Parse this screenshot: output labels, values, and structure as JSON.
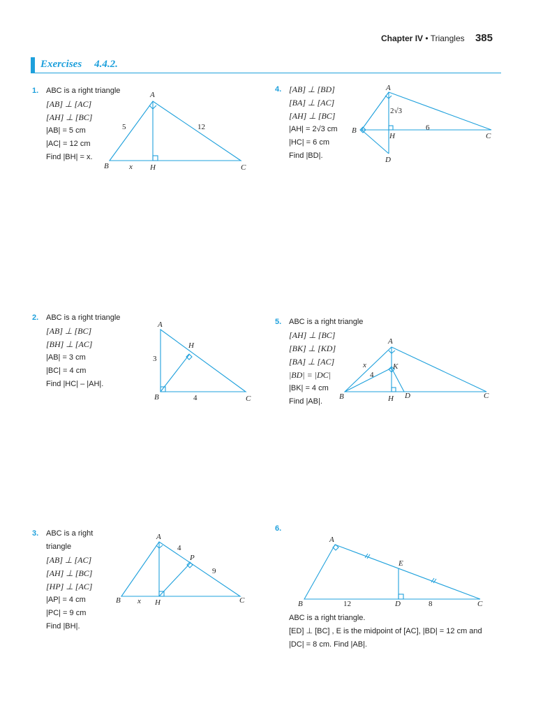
{
  "header": {
    "chapter": "Chapter IV",
    "bullet": "•",
    "topic": "Triangles",
    "page": "385"
  },
  "section": {
    "label": "Exercises",
    "number": "4.4.2."
  },
  "exercises": [
    {
      "num": "1.",
      "lines": [
        "ABC is a right triangle",
        "[AB] ⊥ [AC]",
        "[AH] ⊥ [BC]",
        "|AB| = 5 cm",
        "|AC| = 12 cm",
        "Find |BH| = x."
      ],
      "fig": {
        "A": "A",
        "B": "B",
        "C": "C",
        "H": "H",
        "l1": "5",
        "l2": "12",
        "l3": "x"
      }
    },
    {
      "num": "2.",
      "lines": [
        "ABC is a right triangle",
        "[AB] ⊥ [BC]",
        "[BH] ⊥ [AC]",
        "|AB| = 3 cm",
        "|BC| = 4 cm",
        "Find |HC| – |AH|."
      ],
      "fig": {
        "A": "A",
        "B": "B",
        "C": "C",
        "H": "H",
        "l1": "3",
        "l2": "4"
      }
    },
    {
      "num": "3.",
      "lines": [
        "ABC is a right",
        "triangle",
        "[AB] ⊥ [AC]",
        "[AH] ⊥ [BC]",
        "[HP] ⊥ [AC]",
        "|AP| = 4 cm",
        "|PC| = 9 cm",
        "Find |BH|."
      ],
      "fig": {
        "A": "A",
        "B": "B",
        "C": "C",
        "H": "H",
        "P": "P",
        "l1": "4",
        "l2": "9",
        "l3": "x"
      }
    },
    {
      "num": "4.",
      "lines": [
        "[AB] ⊥ [BD]",
        "[BA] ⊥ [AC]",
        "[AH] ⊥ [BC]",
        "|AH| = 2√3 cm",
        "|HC| = 6 cm",
        "Find |BD|."
      ],
      "fig": {
        "A": "A",
        "B": "B",
        "C": "C",
        "H": "H",
        "D": "D",
        "l1": "2√3",
        "l2": "6"
      }
    },
    {
      "num": "5.",
      "lines": [
        "ABC is a right triangle",
        "[AH] ⊥ [BC]",
        "[BK] ⊥ [KD]",
        "[BA] ⊥ [AC]",
        "|BD| = |DC|",
        "|BK| = 4 cm",
        "Find |AB|."
      ],
      "fig": {
        "A": "A",
        "B": "B",
        "C": "C",
        "H": "H",
        "D": "D",
        "K": "K",
        "l1": "x",
        "l2": "4"
      }
    },
    {
      "num": "6.",
      "lines": [],
      "fig": {
        "A": "A",
        "B": "B",
        "C": "C",
        "D": "D",
        "E": "E",
        "l1": "12",
        "l2": "8"
      },
      "text": [
        "ABC is a right triangle.",
        "[ED] ⊥ [BC] , E is the midpoint of [AC], |BD| = 12 cm and",
        "|DC| = 8 cm. Find |AB|."
      ]
    }
  ]
}
